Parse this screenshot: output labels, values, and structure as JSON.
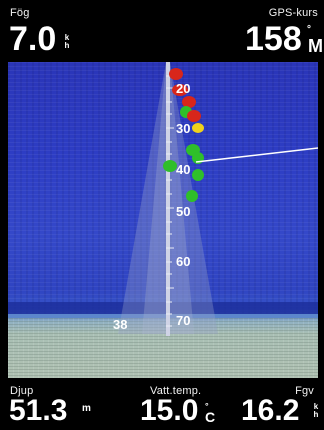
{
  "top": {
    "speed": {
      "label": "Fög",
      "value": "7.0",
      "unit": "kh"
    },
    "course": {
      "label": "GPS-kurs",
      "value": "158",
      "unit_top": "°",
      "unit_bot": "M"
    }
  },
  "bottom": {
    "depth": {
      "label": "Djup",
      "value": "51.3",
      "unit": "m"
    },
    "water_temp": {
      "label": "Vatt.temp.",
      "value": "15.0",
      "unit_top": "°",
      "unit_bot": "C"
    },
    "speed": {
      "label": "Fgv",
      "value": "16.2",
      "unit": "kh"
    }
  },
  "sonar": {
    "depth_marks": [
      "20",
      "30",
      "40",
      "50",
      "60",
      "70"
    ],
    "target_depth_label": "38",
    "colors": {
      "water": "#2d3dc4",
      "bottom_band": "#1c2e9c",
      "ground": "#aebfb2",
      "fish_green": "#2fbf2a",
      "fish_red": "#d8261b",
      "fish_yellow": "#f0d21c"
    }
  }
}
